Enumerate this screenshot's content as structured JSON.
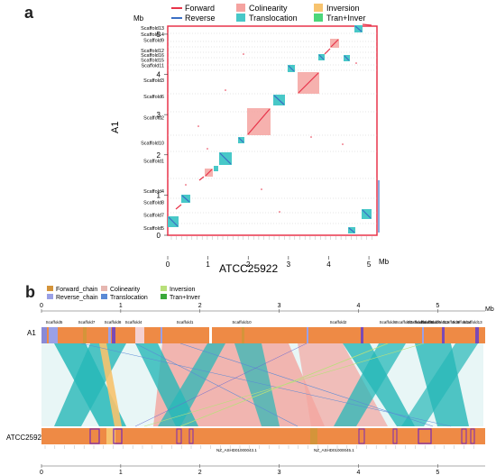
{
  "panel_a": {
    "letter": "a",
    "y_unit": "Mb",
    "x_unit": "Mb",
    "y_axis_label": "A1",
    "x_axis_label": "ATCC25922",
    "y_ticks": [
      "0",
      "1",
      "2",
      "3",
      "4",
      "5"
    ],
    "x_ticks": [
      "0",
      "1",
      "2",
      "3",
      "4",
      "5"
    ],
    "legend": [
      {
        "label": "Forward",
        "type": "line",
        "color": "#e8344a"
      },
      {
        "label": "Reverse",
        "type": "line",
        "color": "#3b6fc4"
      },
      {
        "label": "Colinearity",
        "type": "box",
        "color": "#f5a3a0"
      },
      {
        "label": "Translocation",
        "type": "box",
        "color": "#48c8c8"
      },
      {
        "label": "Inversion",
        "type": "box",
        "color": "#f7c36e"
      },
      {
        "label": "Tran+Inver",
        "type": "box",
        "color": "#4cd67a"
      }
    ],
    "scaffolds": [
      "Scaffold13",
      "Scaffold14",
      "Scaffold9",
      "Scaffold12",
      "Scaffold16",
      "Scaffold15",
      "Scaffold11",
      "Scaffold3",
      "Scaffold6",
      "Scaffold2",
      "Scaffold10",
      "Scaffold1",
      "Scaffold4",
      "Scaffold8",
      "Scaffold7",
      "Scaffold5"
    ],
    "scaffold_y": [
      5.15,
      5.0,
      4.85,
      4.6,
      4.48,
      4.36,
      4.22,
      3.85,
      3.45,
      2.92,
      2.3,
      1.85,
      1.1,
      0.82,
      0.5,
      0.18
    ]
  },
  "panel_b": {
    "letter": "b",
    "unit": "Mb",
    "top_ticks": [
      "0",
      "1",
      "2",
      "3",
      "4",
      "5"
    ],
    "bottom_ticks": [
      "0",
      "1",
      "2",
      "3",
      "4",
      "5"
    ],
    "track_top_label": "A1",
    "track_bottom_label": "ATCC25922",
    "top_scaffolds": [
      "Scaffold5",
      "Scaffold7",
      "Scaffold8",
      "Scaffold4",
      "Scaffold1",
      "Scaffold10",
      "Scaffold2",
      "Scaffold6",
      "Scaffold3",
      "Scaffold11",
      "Scaffold15",
      "Scaffold16",
      "Scaffold12",
      "Scaffold9",
      "Scaffold14",
      "Scaffold13"
    ],
    "bottom_callouts": [
      "NZ_ASHD01000043.1",
      "NZ_ASHD01000045.1"
    ],
    "legend": [
      {
        "label": "Forward_chain",
        "color": "#d4943a"
      },
      {
        "label": "Reverse_chain",
        "color": "#9aa0e6"
      },
      {
        "label": "Colinearity",
        "color": "#e6b6b0"
      },
      {
        "label": "Translocation",
        "color": "#5a8ad6"
      },
      {
        "label": "Inversion",
        "color": "#b8e07a"
      },
      {
        "label": "Tran+Inver",
        "color": "#3aa83a"
      }
    ]
  }
}
